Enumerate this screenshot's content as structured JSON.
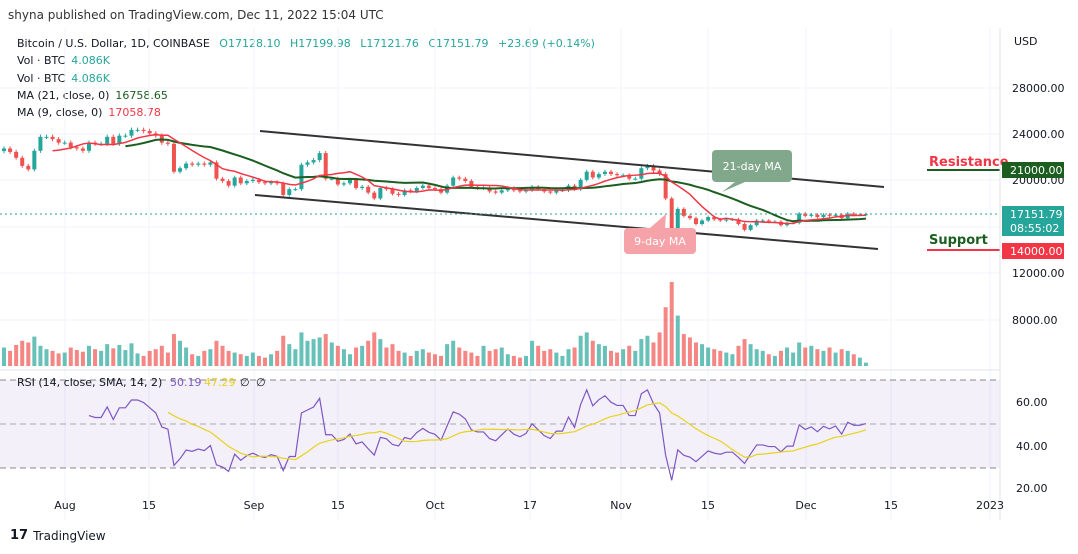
{
  "header": {
    "published": "shyna published on TradingView.com, Dec 11, 2022 15:04 UTC"
  },
  "legend": {
    "symbol": "Bitcoin / U.S. Dollar, 1D, COINBASE",
    "o": "O17128.10",
    "h": "H17199.98",
    "l": "L17121.76",
    "c": "C17151.79",
    "change": "+23.69 (+0.14%)",
    "vol1_label": "Vol · BTC",
    "vol1_value": "4.086K",
    "vol2_label": "Vol · BTC",
    "vol2_value": "4.086K",
    "ma21_label": "MA (21, close, 0)",
    "ma21_value": "16758.65",
    "ma9_label": "MA (9, close, 0)",
    "ma9_value": "17058.78",
    "rsi_label": "RSI (14, close, SMA, 14, 2)",
    "rsi_value": "50.19",
    "rsi_sma_value": "47.29",
    "rsi_x1": "∅",
    "rsi_x2": "∅"
  },
  "annotations": {
    "resistance": "Resistance",
    "support": "Support",
    "ma21": "21-day MA",
    "ma9": "9-day MA"
  },
  "price_axis": {
    "currency": "USD",
    "ticks": [
      "28000.00",
      "24000.00",
      "20000.00",
      "12000.00",
      "8000.00"
    ],
    "resistance_tag": "21000.00",
    "support_tag": "14000.00",
    "last_price": "17151.79",
    "countdown": "08:55:02"
  },
  "rsi_axis": {
    "ticks": [
      "60.00",
      "40.00",
      "20.00"
    ]
  },
  "time_axis": {
    "ticks": [
      "Aug",
      "15",
      "Sep",
      "15",
      "Oct",
      "17",
      "Nov",
      "15",
      "Dec",
      "15",
      "2023"
    ]
  },
  "footer": {
    "brand": "TradingView"
  },
  "colors": {
    "up": "#26a69a",
    "down": "#ef5350",
    "ma21": "#1b5e20",
    "ma9": "#f23645",
    "rsi": "#7e57c2",
    "rsi_sma": "#e8d21d",
    "resistance": "#1b5e20",
    "support": "#f23645"
  },
  "chart_data": {
    "type": "candlestick",
    "start_date": "2022-07-22",
    "interval": "1D",
    "ylim": [
      10000,
      30000
    ],
    "closes": [
      22800,
      22500,
      22000,
      21300,
      21000,
      22600,
      23800,
      23800,
      23600,
      23300,
      23300,
      22900,
      22800,
      22600,
      23300,
      23200,
      23200,
      23800,
      23200,
      23900,
      23900,
      24400,
      24400,
      24300,
      24100,
      23900,
      23300,
      23200,
      20800,
      21100,
      21500,
      21400,
      21500,
      21400,
      21600,
      20200,
      20000,
      19600,
      20300,
      19800,
      20000,
      20100,
      19900,
      19800,
      19900,
      19800,
      18800,
      19300,
      19300,
      21400,
      21600,
      21800,
      22400,
      20200,
      20200,
      19700,
      19800,
      20100,
      19400,
      19500,
      19000,
      18500,
      19400,
      19300,
      18900,
      18800,
      19200,
      19100,
      19400,
      19600,
      19400,
      19300,
      19000,
      19600,
      20300,
      20200,
      20000,
      19500,
      19400,
      19400,
      19100,
      19000,
      19200,
      19400,
      19200,
      19100,
      19200,
      19500,
      19300,
      19100,
      19000,
      19200,
      19200,
      19600,
      19300,
      20100,
      20800,
      20300,
      20600,
      20800,
      20600,
      20500,
      20500,
      20200,
      20200,
      21100,
      21300,
      20900,
      20600,
      18500,
      15900,
      17600,
      17000,
      16800,
      16300,
      16600,
      16900,
      16700,
      16600,
      16700,
      16700,
      16300,
      15800,
      16200,
      16600,
      16600,
      16500,
      16500,
      16200,
      16400,
      16400,
      17200,
      17000,
      17100,
      16900,
      17100,
      17000,
      17100,
      16800,
      17200,
      17100,
      17100,
      17151.79
    ],
    "volumes": [
      22,
      18,
      25,
      30,
      28,
      35,
      24,
      20,
      18,
      15,
      16,
      22,
      19,
      17,
      24,
      20,
      18,
      26,
      21,
      25,
      19,
      27,
      15,
      12,
      18,
      20,
      24,
      16,
      38,
      30,
      22,
      14,
      12,
      18,
      20,
      30,
      24,
      18,
      16,
      14,
      12,
      16,
      12,
      10,
      14,
      18,
      36,
      26,
      20,
      40,
      30,
      32,
      34,
      38,
      28,
      24,
      20,
      14,
      22,
      24,
      30,
      40,
      32,
      22,
      26,
      18,
      16,
      12,
      18,
      20,
      16,
      14,
      12,
      26,
      30,
      22,
      18,
      16,
      12,
      24,
      18,
      20,
      22,
      14,
      12,
      10,
      12,
      30,
      24,
      18,
      20,
      16,
      12,
      20,
      22,
      36,
      40,
      30,
      26,
      24,
      18,
      16,
      20,
      24,
      18,
      32,
      36,
      28,
      40,
      70,
      100,
      60,
      38,
      34,
      28,
      26,
      22,
      20,
      18,
      16,
      14,
      24,
      32,
      26,
      20,
      18,
      14,
      12,
      18,
      22,
      16,
      28,
      22,
      24,
      20,
      18,
      22,
      16,
      20,
      18,
      14,
      10,
      4
    ]
  }
}
